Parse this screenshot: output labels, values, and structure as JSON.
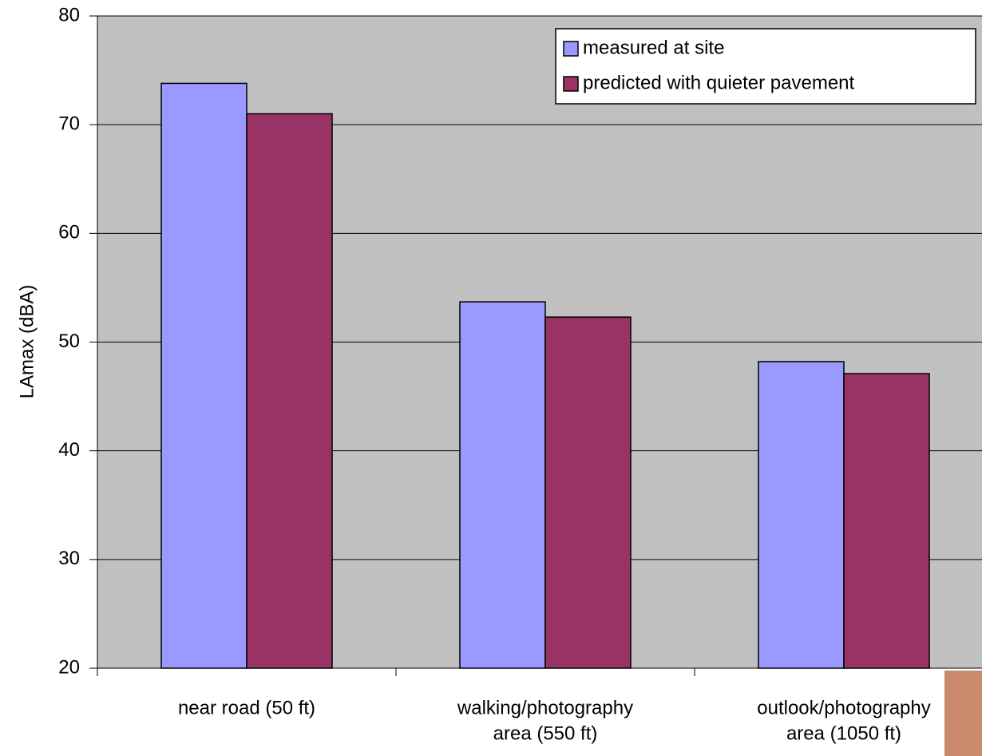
{
  "chart_data": {
    "type": "bar",
    "y_label": "LAmax (dBA)",
    "categories": [
      [
        "near road (50 ft)"
      ],
      [
        "walking/photography",
        "area (550 ft)"
      ],
      [
        "outlook/photography",
        "area (1050 ft)"
      ]
    ],
    "series": [
      {
        "name": "measured at site",
        "color": "#9999ff",
        "values": [
          73.8,
          53.7,
          48.2
        ]
      },
      {
        "name": "predicted with quieter pavement",
        "color": "#993366",
        "values": [
          71.0,
          52.3,
          47.1
        ]
      }
    ],
    "ylim": [
      20,
      80
    ],
    "yticks": [
      20,
      30,
      40,
      50,
      60,
      70,
      80
    ],
    "grid": true,
    "legend": "top-right"
  }
}
